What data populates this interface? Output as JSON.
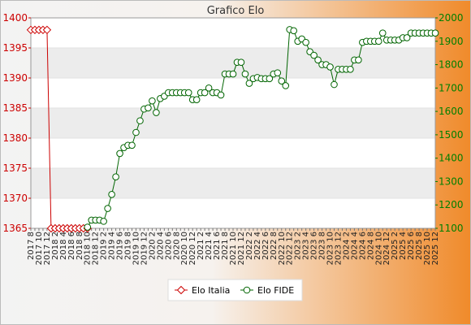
{
  "title": "Grafico Elo",
  "colors": {
    "italia": "#cc0000",
    "fide": "#006400",
    "left_axis": "#cc0000",
    "right_axis": "#008000",
    "band": "#ececec",
    "plot_bg": "#ffffff",
    "frame_gradient_left": "#f3f3f3",
    "frame_gradient_right": "#f08a2a"
  },
  "chart_data": {
    "type": "line",
    "title": "Grafico Elo",
    "grid": true,
    "legend_position": "bottom-center",
    "x": [
      "2017 8",
      "2017 9",
      "2017 10",
      "2017 11",
      "2017 12",
      "2018 1",
      "2018 2",
      "2018 3",
      "2018 4",
      "2018 5",
      "2018 6",
      "2018 7",
      "2018 8",
      "2018 9",
      "2018 10",
      "2018 11",
      "2018 12",
      "2019 1",
      "2019 2",
      "2019 3",
      "2019 4",
      "2019 5",
      "2019 6",
      "2019 7",
      "2019 8",
      "2019 9",
      "2019 10",
      "2019 11",
      "2019 12",
      "2020 1",
      "2020 2",
      "2020 3",
      "2020 4",
      "2020 5",
      "2020 6",
      "2020 7",
      "2020 8",
      "2020 9",
      "2020 10",
      "2020 11",
      "2020 12",
      "2021 1",
      "2021 2",
      "2021 3",
      "2021 4",
      "2021 5",
      "2021 6",
      "2021 7",
      "2021 8",
      "2021 9",
      "2021 10",
      "2021 11",
      "2021 12",
      "2022 1",
      "2022 2",
      "2022 3",
      "2022 4",
      "2022 5",
      "2022 6",
      "2022 7",
      "2022 8",
      "2022 9",
      "2022 10",
      "2022 11",
      "2022 12",
      "2023 1",
      "2023 2",
      "2023 3",
      "2023 4",
      "2023 5",
      "2023 6",
      "2023 7",
      "2023 8",
      "2023 9",
      "2023 10",
      "2023 11",
      "2023 12",
      "2024 1",
      "2024 2",
      "2024 3",
      "2024 4",
      "2024 5",
      "2024 6",
      "2024 7",
      "2024 8",
      "2024 9",
      "2024 10",
      "2024 11",
      "2024 12",
      "2025 1",
      "2025 2",
      "2025 3",
      "2025 4",
      "2025 5",
      "2025 6",
      "2025 7",
      "2025 8",
      "2025 9",
      "2025 10",
      "2025 11",
      "2025 12"
    ],
    "x_tick_labels": [
      "2017 8",
      "2017 10",
      "2017 12",
      "2018 2",
      "2018 4",
      "2018 6",
      "2018 8",
      "2018 10",
      "2018 12",
      "2019 2",
      "2019 4",
      "2019 6",
      "2019 8",
      "2019 10",
      "2019 12",
      "2020 2",
      "2020 4",
      "2020 6",
      "2020 8",
      "2020 10",
      "2020 12",
      "2021 2",
      "2021 4",
      "2021 6",
      "2021 8",
      "2021 10",
      "2021 12",
      "2022 2",
      "2022 4",
      "2022 6",
      "2022 8",
      "2022 10",
      "2022 12",
      "2023 2",
      "2023 4",
      "2023 6",
      "2023 8",
      "2023 10",
      "2023 12",
      "2024 2",
      "2024 4",
      "2024 6",
      "2024 8",
      "2024 10",
      "2024 12",
      "2025 2",
      "2025 4",
      "2025 6",
      "2025 8",
      "2025 10",
      "2025 12"
    ],
    "y_left": {
      "ticks": [
        1365,
        1370,
        1375,
        1380,
        1385,
        1390,
        1395,
        1400
      ],
      "ylim": [
        1365,
        1400
      ]
    },
    "y_right": {
      "ticks": [
        1100,
        1200,
        1300,
        1400,
        1500,
        1600,
        1700,
        1800,
        1900,
        2000
      ],
      "ylim": [
        1100,
        2000
      ]
    },
    "series": [
      {
        "name": "Elo Italia",
        "axis": "left",
        "x": [
          "2017 8",
          "2017 9",
          "2017 10",
          "2017 11",
          "2017 12",
          "2018 1",
          "2018 2",
          "2018 3",
          "2018 4",
          "2018 5",
          "2018 6",
          "2018 7",
          "2018 8",
          "2018 9",
          "2018 10"
        ],
        "values": [
          1398,
          1398,
          1398,
          1398,
          1398,
          1365,
          1365,
          1365,
          1365,
          1365,
          1365,
          1365,
          1365,
          1365,
          1365
        ]
      },
      {
        "name": "Elo FIDE",
        "axis": "right",
        "x": [
          "2018 10",
          "2018 11",
          "2018 12",
          "2019 1",
          "2019 2",
          "2019 3",
          "2019 4",
          "2019 5",
          "2019 6",
          "2019 7",
          "2019 8",
          "2019 9",
          "2019 10",
          "2019 11",
          "2019 12",
          "2020 1",
          "2020 2",
          "2020 3",
          "2020 4",
          "2020 5",
          "2020 6",
          "2020 7",
          "2020 8",
          "2020 9",
          "2020 10",
          "2020 11",
          "2020 12",
          "2021 1",
          "2021 2",
          "2021 3",
          "2021 4",
          "2021 5",
          "2021 6",
          "2021 7",
          "2021 8",
          "2021 9",
          "2021 10",
          "2021 11",
          "2021 12",
          "2022 1",
          "2022 2",
          "2022 3",
          "2022 4",
          "2022 5",
          "2022 6",
          "2022 7",
          "2022 8",
          "2022 9",
          "2022 10",
          "2022 11",
          "2022 12",
          "2023 1",
          "2023 2",
          "2023 3",
          "2023 4",
          "2023 5",
          "2023 6",
          "2023 7",
          "2023 8",
          "2023 9",
          "2023 10",
          "2023 11",
          "2023 12",
          "2024 1",
          "2024 2",
          "2024 3",
          "2024 4",
          "2024 5",
          "2024 6",
          "2024 7",
          "2024 8",
          "2024 9",
          "2024 10",
          "2024 11",
          "2024 12",
          "2025 1",
          "2025 2",
          "2025 3",
          "2025 4",
          "2025 5",
          "2025 6",
          "2025 7",
          "2025 8",
          "2025 9",
          "2025 10",
          "2025 11",
          "2025 12"
        ],
        "values": [
          1105,
          1135,
          1135,
          1135,
          1130,
          1185,
          1245,
          1320,
          1420,
          1445,
          1455,
          1455,
          1510,
          1560,
          1610,
          1615,
          1645,
          1595,
          1655,
          1665,
          1680,
          1680,
          1680,
          1680,
          1680,
          1680,
          1650,
          1650,
          1680,
          1680,
          1700,
          1680,
          1680,
          1670,
          1760,
          1760,
          1760,
          1810,
          1810,
          1760,
          1720,
          1740,
          1745,
          1740,
          1740,
          1740,
          1760,
          1765,
          1730,
          1710,
          1950,
          1945,
          1900,
          1910,
          1895,
          1855,
          1840,
          1820,
          1800,
          1800,
          1790,
          1715,
          1780,
          1780,
          1780,
          1780,
          1820,
          1820,
          1895,
          1900,
          1900,
          1900,
          1900,
          1935,
          1905,
          1905,
          1905,
          1905,
          1915,
          1915,
          1935,
          1935,
          1935,
          1935,
          1935,
          1935,
          1935
        ]
      }
    ]
  },
  "legend": [
    {
      "label": "Elo Italia",
      "color": "#cc0000",
      "marker": "diamond"
    },
    {
      "label": "Elo FIDE",
      "color": "#006400",
      "marker": "circle"
    }
  ]
}
